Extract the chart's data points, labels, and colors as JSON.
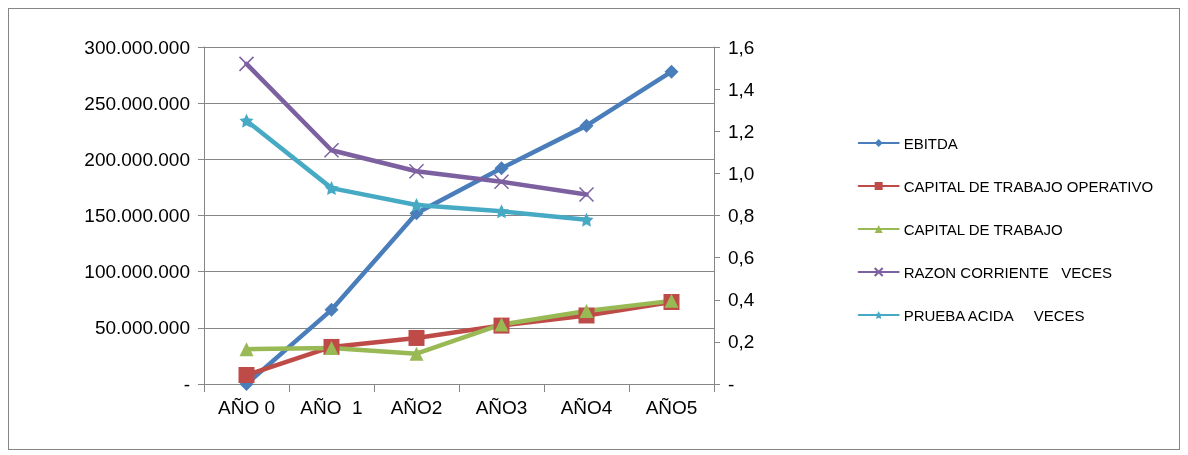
{
  "chart_data": {
    "type": "line",
    "categories": [
      "AÑO 0",
      "AÑO  1",
      "AÑO2",
      "AÑO3",
      "AÑO4",
      "AÑO5"
    ],
    "series": [
      {
        "name": "EBITDA",
        "color": "#4a7ebb",
        "marker": "diamond",
        "values": [
          0,
          66000000,
          152000000,
          192000000,
          230000000,
          278000000
        ]
      },
      {
        "name": "CAPITAL DE TRABAJO OPERATIVO",
        "color": "#be4b48",
        "marker": "square",
        "values": [
          8000000,
          33000000,
          41000000,
          52000000,
          61000000,
          73000000
        ]
      },
      {
        "name": "CAPITAL DE TRABAJO",
        "color": "#98b954",
        "marker": "triangle",
        "values": [
          31000000,
          32000000,
          27000000,
          53000000,
          65000000,
          74000000
        ]
      },
      {
        "name": "RAZON CORRIENTE   VECES",
        "color": "#7d60a0",
        "marker": "cross",
        "axis": "y2",
        "values": [
          1.52,
          1.11,
          1.01,
          0.96,
          0.9,
          null
        ]
      },
      {
        "name": "PRUEBA ACIDA     VECES",
        "color": "#46aac5",
        "marker": "star",
        "axis": "y2",
        "values": [
          1.25,
          0.93,
          0.85,
          0.82,
          0.78,
          null
        ]
      }
    ],
    "ylim": [
      0,
      300000000
    ],
    "yticks": [
      {
        "value": 0,
        "label": "-"
      },
      {
        "value": 50000000,
        "label": "50.000.000"
      },
      {
        "value": 100000000,
        "label": "100.000.000"
      },
      {
        "value": 150000000,
        "label": "150.000.000"
      },
      {
        "value": 200000000,
        "label": "200.000.000"
      },
      {
        "value": 250000000,
        "label": "250.000.000"
      },
      {
        "value": 300000000,
        "label": "300.000.000"
      }
    ],
    "y2lim": [
      0,
      1.6
    ],
    "y2ticks": [
      {
        "value": 0,
        "label": "-"
      },
      {
        "value": 0.2,
        "label": "0,2"
      },
      {
        "value": 0.4,
        "label": "0,4"
      },
      {
        "value": 0.6,
        "label": "0,6"
      },
      {
        "value": 0.8,
        "label": "0,8"
      },
      {
        "value": 1.0,
        "label": "1,0"
      },
      {
        "value": 1.2,
        "label": "1,2"
      },
      {
        "value": 1.4,
        "label": "1,4"
      },
      {
        "value": 1.6,
        "label": "1,6"
      }
    ],
    "grid": "y",
    "legend": "right",
    "line_style": "solid"
  }
}
